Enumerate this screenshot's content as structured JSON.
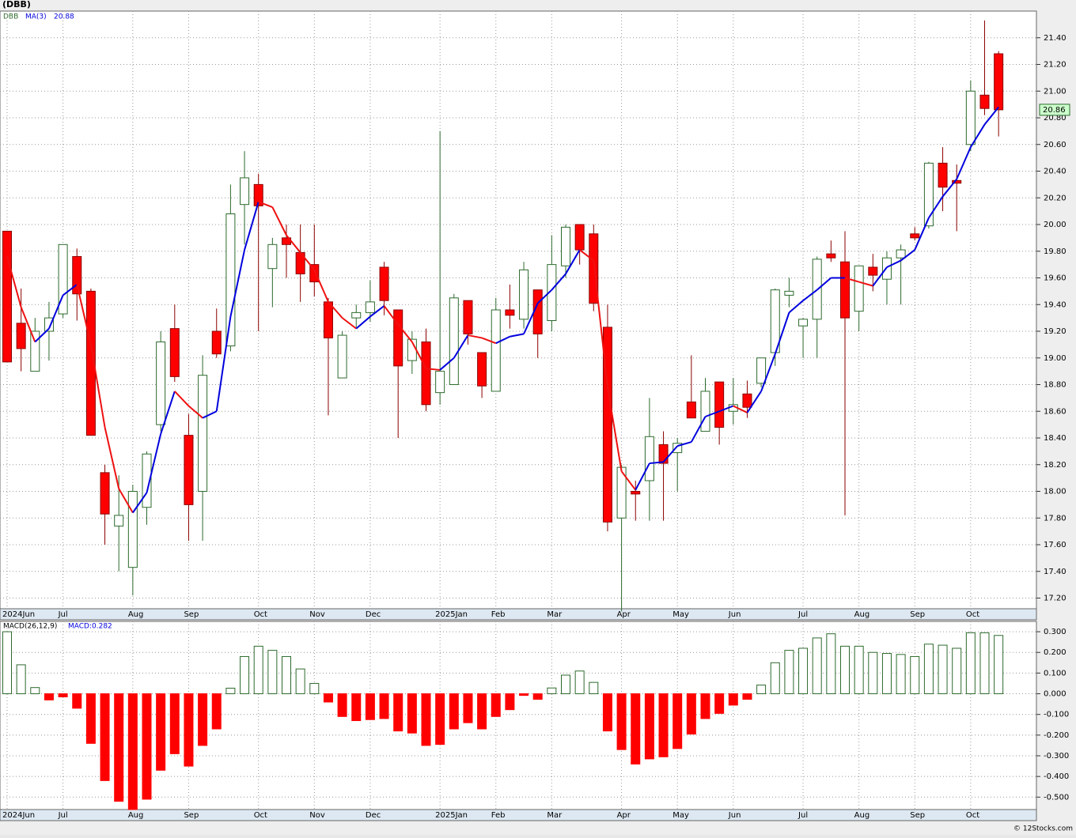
{
  "title": "(DBB)",
  "copyright": "© 12Stocks.com",
  "chart_data": [
    {
      "type": "candlestick",
      "name": "DBB",
      "up_color": "#2d6a2d",
      "down_color": "#ff0000",
      "categories": [
        "2024Jun",
        null,
        null,
        null,
        "Jul",
        null,
        null,
        null,
        null,
        "Aug",
        null,
        null,
        null,
        "Sep",
        null,
        null,
        null,
        null,
        "Oct",
        null,
        null,
        null,
        "Nov",
        null,
        null,
        null,
        "Dec",
        null,
        null,
        null,
        null,
        "2025Jan",
        null,
        null,
        null,
        "Feb",
        null,
        null,
        null,
        "Mar",
        null,
        null,
        null,
        null,
        "Apr",
        null,
        null,
        null,
        "May",
        null,
        null,
        null,
        "Jun",
        null,
        null,
        null,
        null,
        "Jul",
        null,
        null,
        null,
        "Aug",
        null,
        null,
        null,
        "Sep",
        null,
        null,
        null,
        "Oct",
        null,
        null
      ],
      "open": [
        19.95,
        19.26,
        18.9,
        19.2,
        19.33,
        19.76,
        19.5,
        18.14,
        17.74,
        17.43,
        17.88,
        18.5,
        19.22,
        18.42,
        18.0,
        19.2,
        19.09,
        20.15,
        20.3,
        19.67,
        19.9,
        19.79,
        19.7,
        19.42,
        18.85,
        19.3,
        19.34,
        19.68,
        19.36,
        18.98,
        19.12,
        18.74,
        18.8,
        19.43,
        19.04,
        18.75,
        19.36,
        19.29,
        19.51,
        19.28,
        19.69,
        20.0,
        19.93,
        19.23,
        17.8,
        18.0,
        18.08,
        18.35,
        18.29,
        18.67,
        18.45,
        18.82,
        18.6,
        18.73,
        18.81,
        19.04,
        19.47,
        19.24,
        19.29,
        19.78,
        19.72,
        19.35,
        19.68,
        19.59,
        19.75,
        19.93,
        19.99,
        20.46,
        20.33,
        20.6,
        20.97,
        21.28
      ],
      "high": [
        19.95,
        19.52,
        19.3,
        19.42,
        19.85,
        19.82,
        19.52,
        18.2,
        18.12,
        18.05,
        18.3,
        19.2,
        19.4,
        18.58,
        19.02,
        19.37,
        20.3,
        20.55,
        20.38,
        19.9,
        20.0,
        20.0,
        20.0,
        19.45,
        19.2,
        19.4,
        19.58,
        19.72,
        19.36,
        19.2,
        19.22,
        20.7,
        19.48,
        19.43,
        19.04,
        19.45,
        19.55,
        19.72,
        19.51,
        19.92,
        20.0,
        20.0,
        20.0,
        19.4,
        18.2,
        18.08,
        18.7,
        18.45,
        18.4,
        19.02,
        18.85,
        18.82,
        18.85,
        18.83,
        19.0,
        19.52,
        19.6,
        19.3,
        19.76,
        19.88,
        19.95,
        19.69,
        19.78,
        19.8,
        19.85,
        19.98,
        20.47,
        20.58,
        20.45,
        21.08,
        21.53,
        21.3
      ],
      "low": [
        18.97,
        18.9,
        18.9,
        18.98,
        19.3,
        19.28,
        18.42,
        17.6,
        17.4,
        17.22,
        17.75,
        18.45,
        18.82,
        17.63,
        17.63,
        19.0,
        19.05,
        19.85,
        19.2,
        19.38,
        19.6,
        19.42,
        19.46,
        18.57,
        18.85,
        19.23,
        19.27,
        19.32,
        18.4,
        18.88,
        18.6,
        18.65,
        18.8,
        19.1,
        18.7,
        18.75,
        19.22,
        19.22,
        19.0,
        19.2,
        19.6,
        19.7,
        19.35,
        17.7,
        17.1,
        17.78,
        17.78,
        17.78,
        18.0,
        18.55,
        18.45,
        18.35,
        18.5,
        18.55,
        18.78,
        18.94,
        19.38,
        19.0,
        19.0,
        19.72,
        17.82,
        19.2,
        19.5,
        19.4,
        19.4,
        19.88,
        19.97,
        20.1,
        19.95,
        20.55,
        20.82,
        20.66
      ],
      "close": [
        18.97,
        19.07,
        19.2,
        19.3,
        19.85,
        19.48,
        18.42,
        17.83,
        17.82,
        18.0,
        18.28,
        19.12,
        18.86,
        17.9,
        18.87,
        19.03,
        20.08,
        20.35,
        20.14,
        19.85,
        19.85,
        19.63,
        19.57,
        19.15,
        19.17,
        19.34,
        19.42,
        19.43,
        18.94,
        19.14,
        18.65,
        18.9,
        19.45,
        19.18,
        18.79,
        19.36,
        19.32,
        19.66,
        19.18,
        19.7,
        19.98,
        19.81,
        19.41,
        17.77,
        18.18,
        17.98,
        18.41,
        18.21,
        18.36,
        18.55,
        18.75,
        18.48,
        18.65,
        18.63,
        19.0,
        19.51,
        19.5,
        19.29,
        19.74,
        19.75,
        19.3,
        19.69,
        19.62,
        19.75,
        19.81,
        19.9,
        20.46,
        20.28,
        20.31,
        21.0,
        20.87,
        20.86
      ],
      "ma": {
        "name": "MA(3)",
        "rise_color": "#0000dd",
        "fall_color": "#ee1111",
        "values": [
          19.76,
          19.38,
          19.12,
          19.22,
          19.47,
          19.55,
          19.1,
          18.48,
          18.02,
          17.84,
          17.99,
          18.43,
          18.75,
          18.64,
          18.55,
          18.6,
          19.31,
          19.81,
          20.17,
          20.13,
          19.92,
          19.79,
          19.66,
          19.42,
          19.3,
          19.22,
          19.31,
          19.39,
          19.25,
          19.12,
          18.92,
          18.91,
          19.0,
          19.17,
          19.15,
          19.11,
          19.16,
          19.18,
          19.41,
          19.51,
          19.63,
          19.81,
          19.73,
          18.78,
          18.15,
          18.01,
          18.21,
          18.22,
          18.34,
          18.37,
          18.56,
          18.6,
          18.64,
          18.59,
          18.75,
          19.03,
          19.34,
          19.43,
          19.51,
          19.6,
          19.6,
          19.57,
          19.54,
          19.68,
          19.73,
          19.81,
          20.05,
          20.21,
          20.34,
          20.58,
          20.75,
          20.88
        ]
      },
      "ylim": [
        17.12,
        21.6
      ],
      "yticks": [
        {
          "value": 17.2,
          "label": "17.20"
        },
        {
          "value": 17.4,
          "label": "17.40"
        },
        {
          "value": 17.6,
          "label": "17.60"
        },
        {
          "value": 17.8,
          "label": "17.80"
        },
        {
          "value": 18.0,
          "label": "18.00"
        },
        {
          "value": 18.2,
          "label": "18.20"
        },
        {
          "value": 18.4,
          "label": "18.40"
        },
        {
          "value": 18.6,
          "label": "18.60"
        },
        {
          "value": 18.8,
          "label": "18.80"
        },
        {
          "value": 19.0,
          "label": "19.00"
        },
        {
          "value": 19.2,
          "label": "19.20"
        },
        {
          "value": 19.4,
          "label": "19.40"
        },
        {
          "value": 19.6,
          "label": "19.60"
        },
        {
          "value": 19.8,
          "label": "19.80"
        },
        {
          "value": 20.0,
          "label": "20.00"
        },
        {
          "value": 20.2,
          "label": "20.20"
        },
        {
          "value": 20.4,
          "label": "20.40"
        },
        {
          "value": 20.6,
          "label": "20.60"
        },
        {
          "value": 20.8,
          "label": "20.80"
        },
        {
          "value": 21.0,
          "label": "21.00"
        },
        {
          "value": 21.2,
          "label": "21.20"
        },
        {
          "value": 21.4,
          "label": "21.40"
        }
      ],
      "grid": true
    },
    {
      "type": "bar",
      "name": "MACD(26,12,9)",
      "last_label": "MACD:0.282",
      "pos_color": "#2d6a2d",
      "neg_color": "#ff0000",
      "values": [
        0.3,
        0.14,
        0.03,
        -0.03,
        -0.015,
        -0.07,
        -0.24,
        -0.42,
        -0.52,
        -0.56,
        -0.51,
        -0.37,
        -0.29,
        -0.35,
        -0.25,
        -0.17,
        0.027,
        0.18,
        0.23,
        0.21,
        0.18,
        0.12,
        0.05,
        -0.04,
        -0.11,
        -0.13,
        -0.125,
        -0.12,
        -0.18,
        -0.19,
        -0.25,
        -0.245,
        -0.17,
        -0.14,
        -0.17,
        -0.11,
        -0.077,
        -0.008,
        -0.027,
        0.028,
        0.09,
        0.11,
        0.055,
        -0.18,
        -0.27,
        -0.34,
        -0.315,
        -0.305,
        -0.265,
        -0.195,
        -0.12,
        -0.095,
        -0.055,
        -0.027,
        0.042,
        0.15,
        0.21,
        0.22,
        0.27,
        0.29,
        0.23,
        0.23,
        0.2,
        0.195,
        0.19,
        0.18,
        0.24,
        0.235,
        0.22,
        0.295,
        0.295,
        0.282
      ],
      "ylim": [
        -0.56,
        0.35
      ],
      "yticks": [
        {
          "value": -0.5,
          "label": "-0.500"
        },
        {
          "value": -0.4,
          "label": "-0.400"
        },
        {
          "value": -0.3,
          "label": "-0.300"
        },
        {
          "value": -0.2,
          "label": "-0.200"
        },
        {
          "value": -0.1,
          "label": "-0.100"
        },
        {
          "value": 0,
          "label": "0.000"
        },
        {
          "value": 0.1,
          "label": "0.100"
        },
        {
          "value": 0.2,
          "label": "0.200"
        },
        {
          "value": 0.3,
          "label": "0.300"
        }
      ],
      "grid": true
    }
  ]
}
